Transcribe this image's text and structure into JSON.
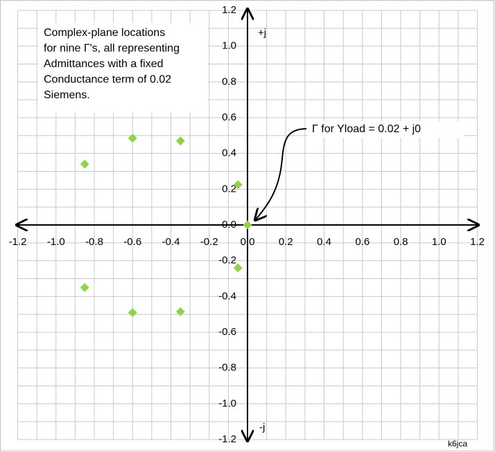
{
  "chart_data": {
    "type": "scatter",
    "annotation": [
      "Complex-plane locations",
      "for nine Γ's, all representing",
      "Admittances with a fixed",
      "Conductance term of 0.02",
      "Siemens."
    ],
    "callout": "Γ for Yload = 0.02 + j0",
    "pos_imag_label": "+j",
    "neg_imag_label": "-j",
    "credit": "k6jca",
    "series": [
      {
        "color": "#92d050",
        "x": [
          -0.85,
          -0.6,
          -0.35,
          -0.05,
          0,
          -0.05,
          -0.35,
          -0.6,
          -0.85
        ],
        "values": [
          0.34,
          0.485,
          0.47,
          0.225,
          0,
          -0.24,
          -0.485,
          -0.49,
          -0.35
        ]
      }
    ],
    "xlim": [
      -1.2,
      1.2
    ],
    "ylim": [
      -1.2,
      1.2
    ],
    "xticks": [
      -1.2,
      {
        "value": -1,
        "label": "-1.0"
      },
      -0.8,
      -0.6,
      -0.4,
      -0.2,
      {
        "value": 0,
        "label": "0.0"
      },
      0.2,
      0.4,
      0.6,
      0.8,
      {
        "value": 1,
        "label": "1.0"
      },
      1.2
    ],
    "yticks": [
      -1.2,
      {
        "value": -1,
        "label": "-1.0"
      },
      -0.8,
      -0.6,
      -0.4,
      -0.2,
      {
        "value": 0,
        "label": "0.0"
      },
      0.2,
      0.4,
      0.6,
      0.8,
      {
        "value": 1,
        "label": "1.0"
      },
      1.2
    ],
    "xminorticks": [
      -1.1,
      -0.9,
      -0.7,
      -0.5,
      -0.3,
      -0.1,
      0.1,
      0.3,
      0.5,
      0.7,
      0.9,
      1.1
    ],
    "yminorticks": [
      -1.1,
      -0.9,
      -0.7,
      -0.5,
      -0.3,
      -0.1,
      0.1,
      0.3,
      0.5,
      0.7,
      0.9,
      1.1
    ],
    "grid": true
  }
}
